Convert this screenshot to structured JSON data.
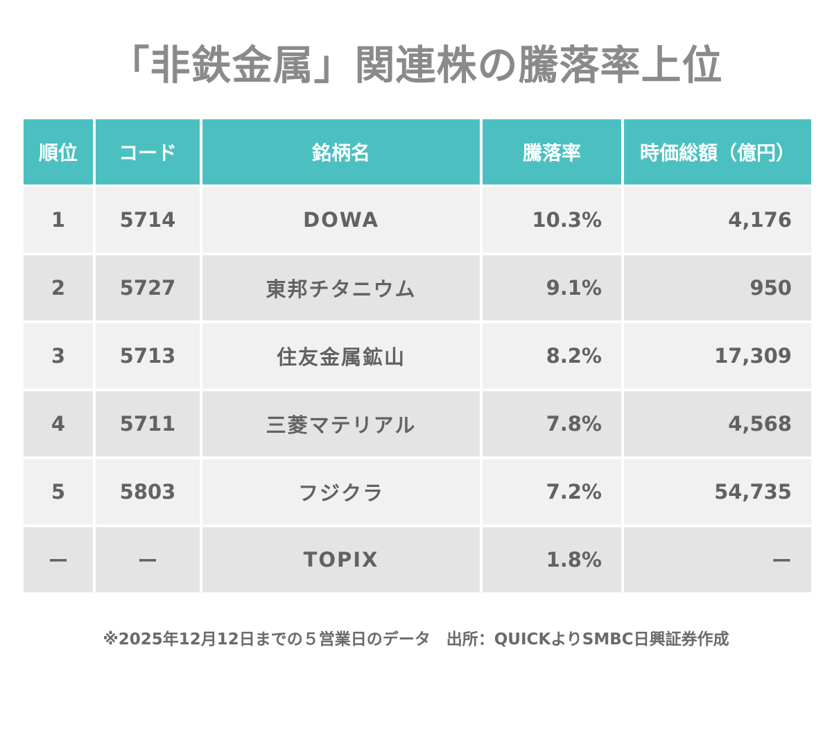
{
  "title": "「非鉄金属」関連株の騰落率上位",
  "colors": {
    "header_bg": "#4cc0c0",
    "row_light": "#f1f1f1",
    "row_dark": "#e4e4e4",
    "title_text": "#8a8a8a"
  },
  "table": {
    "headers": [
      "順位",
      "コード",
      "銘柄名",
      "騰落率",
      "時価総額（億円）"
    ],
    "rows": [
      {
        "rank": "1",
        "code": "5714",
        "name": "DOWA",
        "change": "10.3%",
        "mcap": "4,176"
      },
      {
        "rank": "2",
        "code": "5727",
        "name": "東邦チタニウム",
        "change": "9.1%",
        "mcap": "950"
      },
      {
        "rank": "3",
        "code": "5713",
        "name": "住友金属鉱山",
        "change": "8.2%",
        "mcap": "17,309"
      },
      {
        "rank": "4",
        "code": "5711",
        "name": "三菱マテリアル",
        "change": "7.8%",
        "mcap": "4,568"
      },
      {
        "rank": "5",
        "code": "5803",
        "name": "フジクラ",
        "change": "7.2%",
        "mcap": "54,735"
      },
      {
        "rank": "ー",
        "code": "ー",
        "name": "TOPIX",
        "change": "1.8%",
        "mcap": "ー"
      }
    ]
  },
  "footnote": "※2025年12月12日までの５営業日のデータ　出所：QUICKよりSMBC日興証券作成"
}
